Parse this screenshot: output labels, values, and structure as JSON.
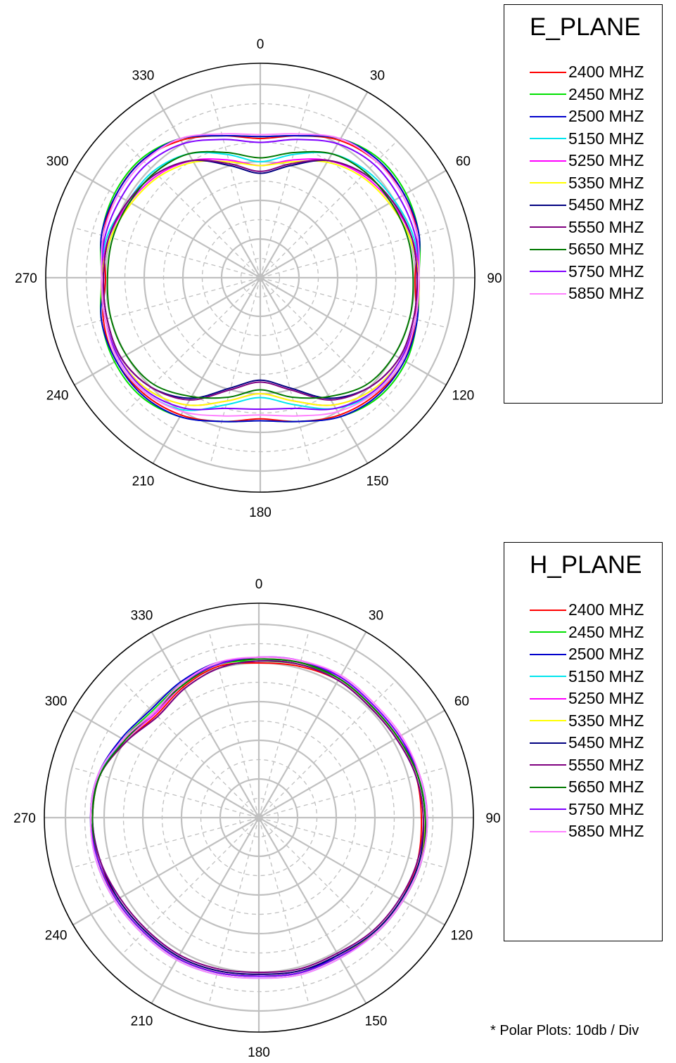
{
  "footnote": "* Polar Plots: 10db / Div",
  "chart_data": [
    {
      "type": "polar-line",
      "title": "E_PLANE",
      "angle_ticks": [
        "0",
        "30",
        "60",
        "90",
        "120",
        "150",
        "180",
        "210",
        "240",
        "270",
        "300",
        "330"
      ],
      "angle_unit": "deg",
      "rings": 5,
      "radial_range": [
        0,
        1
      ],
      "series": [
        {
          "name": "2400 MHZ",
          "color": "#ff0000",
          "r": [
            0.72,
            0.76,
            0.82,
            0.85,
            0.86,
            0.84,
            0.8,
            0.83,
            0.86,
            0.85,
            0.82,
            0.77,
            0.73,
            0.77,
            0.82,
            0.85,
            0.86,
            0.84,
            0.8,
            0.84,
            0.86,
            0.86,
            0.82,
            0.76,
            0.72
          ]
        },
        {
          "name": "2450 MHZ",
          "color": "#00e000",
          "r": [
            0.73,
            0.76,
            0.83,
            0.87,
            0.87,
            0.85,
            0.82,
            0.84,
            0.87,
            0.87,
            0.83,
            0.77,
            0.74,
            0.77,
            0.83,
            0.87,
            0.87,
            0.85,
            0.82,
            0.85,
            0.87,
            0.87,
            0.83,
            0.76,
            0.73
          ]
        },
        {
          "name": "2500 MHZ",
          "color": "#0000cc",
          "r": [
            0.73,
            0.76,
            0.83,
            0.86,
            0.86,
            0.85,
            0.81,
            0.84,
            0.86,
            0.86,
            0.83,
            0.77,
            0.74,
            0.77,
            0.83,
            0.86,
            0.86,
            0.85,
            0.81,
            0.85,
            0.86,
            0.86,
            0.83,
            0.76,
            0.73
          ]
        },
        {
          "name": "5150 MHZ",
          "color": "#00e5ee",
          "r": [
            0.6,
            0.66,
            0.74,
            0.78,
            0.8,
            0.82,
            0.82,
            0.83,
            0.85,
            0.84,
            0.78,
            0.68,
            0.62,
            0.68,
            0.79,
            0.84,
            0.85,
            0.83,
            0.82,
            0.82,
            0.79,
            0.78,
            0.74,
            0.66,
            0.6
          ]
        },
        {
          "name": "5250 MHZ",
          "color": "#ff00ff",
          "r": [
            0.58,
            0.63,
            0.7,
            0.75,
            0.78,
            0.81,
            0.82,
            0.83,
            0.84,
            0.82,
            0.76,
            0.66,
            0.6,
            0.66,
            0.76,
            0.82,
            0.84,
            0.83,
            0.82,
            0.81,
            0.78,
            0.75,
            0.7,
            0.63,
            0.58
          ]
        },
        {
          "name": "5350 MHZ",
          "color": "#ffff00",
          "r": [
            0.58,
            0.62,
            0.69,
            0.74,
            0.77,
            0.8,
            0.82,
            0.83,
            0.84,
            0.82,
            0.76,
            0.66,
            0.6,
            0.66,
            0.76,
            0.82,
            0.84,
            0.83,
            0.82,
            0.8,
            0.77,
            0.74,
            0.69,
            0.62,
            0.58
          ]
        },
        {
          "name": "5450 MHZ",
          "color": "#000080",
          "r": [
            0.54,
            0.6,
            0.7,
            0.76,
            0.79,
            0.81,
            0.81,
            0.82,
            0.83,
            0.8,
            0.72,
            0.59,
            0.53,
            0.59,
            0.72,
            0.8,
            0.83,
            0.82,
            0.81,
            0.81,
            0.79,
            0.76,
            0.7,
            0.6,
            0.54
          ]
        },
        {
          "name": "5550 MHZ",
          "color": "#800080",
          "r": [
            0.55,
            0.61,
            0.7,
            0.76,
            0.79,
            0.81,
            0.81,
            0.82,
            0.83,
            0.8,
            0.73,
            0.6,
            0.54,
            0.6,
            0.73,
            0.8,
            0.83,
            0.82,
            0.81,
            0.81,
            0.79,
            0.76,
            0.7,
            0.61,
            0.55
          ]
        },
        {
          "name": "5650 MHZ",
          "color": "#007800",
          "r": [
            0.62,
            0.67,
            0.74,
            0.77,
            0.78,
            0.79,
            0.79,
            0.8,
            0.8,
            0.78,
            0.71,
            0.64,
            0.58,
            0.64,
            0.71,
            0.78,
            0.8,
            0.8,
            0.79,
            0.79,
            0.78,
            0.77,
            0.74,
            0.67,
            0.62
          ]
        },
        {
          "name": "5750 MHZ",
          "color": "#8000ff",
          "r": [
            0.7,
            0.74,
            0.8,
            0.83,
            0.83,
            0.83,
            0.82,
            0.83,
            0.84,
            0.83,
            0.78,
            0.7,
            0.68,
            0.7,
            0.78,
            0.83,
            0.84,
            0.83,
            0.82,
            0.83,
            0.83,
            0.83,
            0.8,
            0.74,
            0.7
          ]
        },
        {
          "name": "5850 MHZ",
          "color": "#ff80ff",
          "r": [
            0.74,
            0.77,
            0.83,
            0.85,
            0.85,
            0.84,
            0.82,
            0.83,
            0.85,
            0.84,
            0.8,
            0.74,
            0.71,
            0.74,
            0.8,
            0.84,
            0.85,
            0.83,
            0.82,
            0.84,
            0.85,
            0.85,
            0.83,
            0.77,
            0.74
          ]
        }
      ]
    },
    {
      "type": "polar-line",
      "title": "H_PLANE",
      "angle_ticks": [
        "0",
        "30",
        "60",
        "90",
        "120",
        "150",
        "180",
        "210",
        "240",
        "270",
        "300",
        "330"
      ],
      "angle_unit": "deg",
      "rings": 5,
      "radial_range": [
        0,
        1
      ],
      "series": [
        {
          "name": "2400 MHZ",
          "color": "#ff0000",
          "r": [
            0.8,
            0.81,
            0.82,
            0.81,
            0.82,
            0.84,
            0.84,
            0.85,
            0.85,
            0.84,
            0.82,
            0.82,
            0.81,
            0.82,
            0.83,
            0.83,
            0.84,
            0.86,
            0.86,
            0.85,
            0.79,
            0.75,
            0.78,
            0.81,
            0.8
          ]
        },
        {
          "name": "2450 MHZ",
          "color": "#00e000",
          "r": [
            0.81,
            0.82,
            0.83,
            0.82,
            0.83,
            0.85,
            0.86,
            0.87,
            0.86,
            0.85,
            0.83,
            0.83,
            0.82,
            0.83,
            0.84,
            0.84,
            0.85,
            0.86,
            0.87,
            0.85,
            0.81,
            0.78,
            0.8,
            0.82,
            0.81
          ]
        },
        {
          "name": "2500 MHZ",
          "color": "#0000cc",
          "r": [
            0.82,
            0.83,
            0.84,
            0.83,
            0.84,
            0.85,
            0.86,
            0.86,
            0.85,
            0.84,
            0.82,
            0.83,
            0.82,
            0.83,
            0.84,
            0.84,
            0.85,
            0.86,
            0.87,
            0.86,
            0.82,
            0.79,
            0.81,
            0.83,
            0.82
          ]
        },
        {
          "name": "5150 MHZ",
          "color": "#00e5ee",
          "r": [
            0.82,
            0.83,
            0.83,
            0.82,
            0.83,
            0.85,
            0.87,
            0.87,
            0.86,
            0.85,
            0.84,
            0.84,
            0.83,
            0.84,
            0.85,
            0.85,
            0.86,
            0.87,
            0.87,
            0.86,
            0.8,
            0.76,
            0.79,
            0.82,
            0.82
          ]
        },
        {
          "name": "5250 MHZ",
          "color": "#ff00ff",
          "r": [
            0.83,
            0.84,
            0.84,
            0.83,
            0.84,
            0.86,
            0.87,
            0.86,
            0.85,
            0.84,
            0.83,
            0.83,
            0.82,
            0.83,
            0.84,
            0.84,
            0.85,
            0.86,
            0.86,
            0.85,
            0.8,
            0.76,
            0.79,
            0.82,
            0.83
          ]
        },
        {
          "name": "5350 MHZ",
          "color": "#ffff00",
          "r": [
            0.82,
            0.83,
            0.83,
            0.82,
            0.83,
            0.85,
            0.86,
            0.86,
            0.85,
            0.84,
            0.83,
            0.83,
            0.82,
            0.83,
            0.84,
            0.84,
            0.85,
            0.86,
            0.86,
            0.85,
            0.8,
            0.77,
            0.79,
            0.82,
            0.82
          ]
        },
        {
          "name": "5450 MHZ",
          "color": "#000080",
          "r": [
            0.81,
            0.82,
            0.82,
            0.81,
            0.82,
            0.84,
            0.85,
            0.86,
            0.85,
            0.84,
            0.82,
            0.82,
            0.81,
            0.82,
            0.83,
            0.83,
            0.84,
            0.85,
            0.86,
            0.85,
            0.79,
            0.74,
            0.77,
            0.8,
            0.81
          ]
        },
        {
          "name": "5550 MHZ",
          "color": "#800080",
          "r": [
            0.81,
            0.82,
            0.82,
            0.81,
            0.82,
            0.84,
            0.85,
            0.85,
            0.84,
            0.83,
            0.81,
            0.81,
            0.8,
            0.81,
            0.82,
            0.82,
            0.83,
            0.85,
            0.86,
            0.85,
            0.79,
            0.74,
            0.77,
            0.8,
            0.81
          ]
        },
        {
          "name": "5650 MHZ",
          "color": "#007800",
          "r": [
            0.82,
            0.83,
            0.83,
            0.82,
            0.83,
            0.85,
            0.86,
            0.87,
            0.86,
            0.85,
            0.83,
            0.83,
            0.82,
            0.83,
            0.84,
            0.84,
            0.85,
            0.86,
            0.86,
            0.85,
            0.8,
            0.77,
            0.79,
            0.82,
            0.82
          ]
        },
        {
          "name": "5750 MHZ",
          "color": "#8000ff",
          "r": [
            0.83,
            0.84,
            0.84,
            0.83,
            0.84,
            0.86,
            0.87,
            0.87,
            0.86,
            0.85,
            0.83,
            0.83,
            0.82,
            0.83,
            0.84,
            0.84,
            0.85,
            0.86,
            0.87,
            0.86,
            0.81,
            0.77,
            0.8,
            0.82,
            0.83
          ]
        },
        {
          "name": "5850 MHZ",
          "color": "#ff80ff",
          "r": [
            0.83,
            0.84,
            0.85,
            0.84,
            0.85,
            0.86,
            0.87,
            0.87,
            0.86,
            0.85,
            0.84,
            0.84,
            0.83,
            0.84,
            0.85,
            0.85,
            0.86,
            0.87,
            0.87,
            0.86,
            0.81,
            0.77,
            0.8,
            0.83,
            0.83
          ]
        }
      ]
    }
  ]
}
